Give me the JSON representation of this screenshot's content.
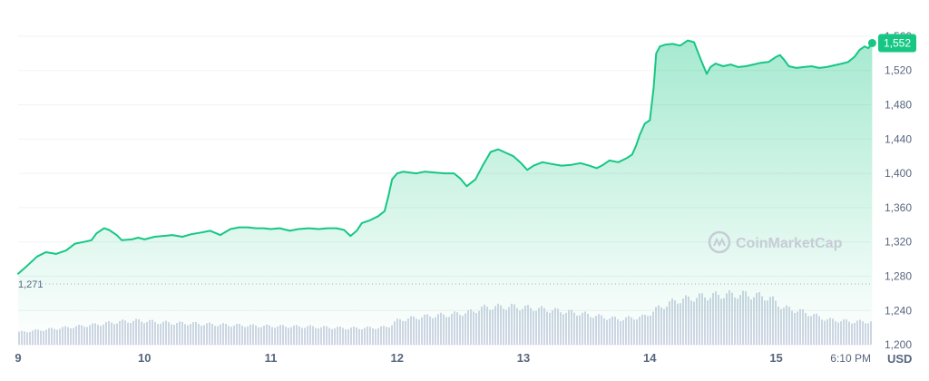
{
  "chart_data": {
    "type": "area",
    "title": "",
    "ylabel": "",
    "unit": "USD",
    "ylim": [
      1180,
      1580
    ],
    "y_ticks": [
      "1,200",
      "1,240",
      "1,280",
      "1,320",
      "1,360",
      "1,400",
      "1,440",
      "1,480",
      "1,520",
      "1,560"
    ],
    "x_ticks": [
      "9",
      "10",
      "11",
      "12",
      "13",
      "14",
      "15",
      "6:10 PM"
    ],
    "x_range_days": [
      9,
      15.75
    ],
    "baseline": {
      "value": 1271,
      "label": "1,271"
    },
    "current_value": {
      "value": 1552,
      "label": "1,552"
    },
    "series": [
      {
        "values": [
          [
            9.0,
            1283
          ],
          [
            9.07,
            1292
          ],
          [
            9.15,
            1303
          ],
          [
            9.22,
            1308
          ],
          [
            9.3,
            1306
          ],
          [
            9.38,
            1310
          ],
          [
            9.45,
            1318
          ],
          [
            9.52,
            1320
          ],
          [
            9.58,
            1322
          ],
          [
            9.62,
            1330
          ],
          [
            9.68,
            1336
          ],
          [
            9.72,
            1334
          ],
          [
            9.78,
            1328
          ],
          [
            9.82,
            1322
          ],
          [
            9.9,
            1323
          ],
          [
            9.95,
            1325
          ],
          [
            10.0,
            1323
          ],
          [
            10.08,
            1326
          ],
          [
            10.15,
            1327
          ],
          [
            10.22,
            1328
          ],
          [
            10.3,
            1326
          ],
          [
            10.37,
            1329
          ],
          [
            10.45,
            1331
          ],
          [
            10.52,
            1333
          ],
          [
            10.6,
            1328
          ],
          [
            10.68,
            1335
          ],
          [
            10.75,
            1337
          ],
          [
            10.82,
            1337
          ],
          [
            10.88,
            1336
          ],
          [
            10.94,
            1336
          ],
          [
            11.0,
            1335
          ],
          [
            11.07,
            1336
          ],
          [
            11.15,
            1333
          ],
          [
            11.22,
            1335
          ],
          [
            11.3,
            1336
          ],
          [
            11.38,
            1335
          ],
          [
            11.45,
            1336
          ],
          [
            11.52,
            1336
          ],
          [
            11.58,
            1334
          ],
          [
            11.63,
            1327
          ],
          [
            11.68,
            1333
          ],
          [
            11.72,
            1342
          ],
          [
            11.78,
            1345
          ],
          [
            11.85,
            1350
          ],
          [
            11.9,
            1356
          ],
          [
            11.93,
            1373
          ],
          [
            11.96,
            1393
          ],
          [
            12.0,
            1400
          ],
          [
            12.05,
            1402
          ],
          [
            12.1,
            1401
          ],
          [
            12.15,
            1400
          ],
          [
            12.22,
            1402
          ],
          [
            12.3,
            1401
          ],
          [
            12.38,
            1400
          ],
          [
            12.45,
            1400
          ],
          [
            12.5,
            1394
          ],
          [
            12.55,
            1385
          ],
          [
            12.62,
            1393
          ],
          [
            12.68,
            1410
          ],
          [
            12.74,
            1425
          ],
          [
            12.8,
            1428
          ],
          [
            12.86,
            1424
          ],
          [
            12.92,
            1420
          ],
          [
            12.98,
            1412
          ],
          [
            13.03,
            1404
          ],
          [
            13.08,
            1409
          ],
          [
            13.15,
            1413
          ],
          [
            13.22,
            1411
          ],
          [
            13.3,
            1409
          ],
          [
            13.38,
            1410
          ],
          [
            13.45,
            1412
          ],
          [
            13.52,
            1409
          ],
          [
            13.58,
            1406
          ],
          [
            13.63,
            1410
          ],
          [
            13.68,
            1415
          ],
          [
            13.75,
            1413
          ],
          [
            13.82,
            1418
          ],
          [
            13.86,
            1422
          ],
          [
            13.89,
            1432
          ],
          [
            13.92,
            1445
          ],
          [
            13.96,
            1458
          ],
          [
            14.0,
            1462
          ],
          [
            14.03,
            1500
          ],
          [
            14.05,
            1540
          ],
          [
            14.08,
            1548
          ],
          [
            14.12,
            1550
          ],
          [
            14.18,
            1551
          ],
          [
            14.24,
            1549
          ],
          [
            14.3,
            1555
          ],
          [
            14.35,
            1553
          ],
          [
            14.4,
            1534
          ],
          [
            14.45,
            1516
          ],
          [
            14.48,
            1524
          ],
          [
            14.52,
            1528
          ],
          [
            14.58,
            1525
          ],
          [
            14.64,
            1527
          ],
          [
            14.7,
            1524
          ],
          [
            14.76,
            1525
          ],
          [
            14.82,
            1527
          ],
          [
            14.88,
            1529
          ],
          [
            14.94,
            1530
          ],
          [
            15.0,
            1536
          ],
          [
            15.03,
            1538
          ],
          [
            15.06,
            1533
          ],
          [
            15.1,
            1525
          ],
          [
            15.16,
            1523
          ],
          [
            15.22,
            1524
          ],
          [
            15.28,
            1525
          ],
          [
            15.34,
            1523
          ],
          [
            15.4,
            1524
          ],
          [
            15.46,
            1526
          ],
          [
            15.52,
            1528
          ],
          [
            15.57,
            1530
          ],
          [
            15.62,
            1536
          ],
          [
            15.66,
            1544
          ],
          [
            15.7,
            1548
          ],
          [
            15.73,
            1546
          ],
          [
            15.76,
            1552
          ]
        ],
        "color": "#16c784"
      }
    ],
    "volume": {
      "type": "bar",
      "unit_scale": "relative",
      "values": [
        [
          9.0,
          0.25
        ],
        [
          9.2,
          0.3
        ],
        [
          9.4,
          0.35
        ],
        [
          9.6,
          0.4
        ],
        [
          9.8,
          0.46
        ],
        [
          9.95,
          0.48
        ],
        [
          10.15,
          0.44
        ],
        [
          10.4,
          0.42
        ],
        [
          10.7,
          0.39
        ],
        [
          11.0,
          0.37
        ],
        [
          11.3,
          0.36
        ],
        [
          11.6,
          0.33
        ],
        [
          11.85,
          0.34
        ],
        [
          11.92,
          0.36
        ],
        [
          12.0,
          0.49
        ],
        [
          12.2,
          0.56
        ],
        [
          12.4,
          0.6
        ],
        [
          12.55,
          0.64
        ],
        [
          12.7,
          0.75
        ],
        [
          12.9,
          0.76
        ],
        [
          13.1,
          0.72
        ],
        [
          13.4,
          0.64
        ],
        [
          13.6,
          0.56
        ],
        [
          13.75,
          0.51
        ],
        [
          13.95,
          0.56
        ],
        [
          14.05,
          0.72
        ],
        [
          14.2,
          0.88
        ],
        [
          14.4,
          0.96
        ],
        [
          14.6,
          1.0
        ],
        [
          14.75,
          1.0
        ],
        [
          14.9,
          0.96
        ],
        [
          14.95,
          0.92
        ],
        [
          15.05,
          0.74
        ],
        [
          15.2,
          0.66
        ],
        [
          15.4,
          0.5
        ],
        [
          15.6,
          0.46
        ],
        [
          15.76,
          0.46
        ]
      ],
      "color": "#cfd6e4"
    },
    "grid": true,
    "watermark": "CoinMarketCap",
    "colors": {
      "line": "#16c784",
      "volume": "#cfd6e4",
      "grid": "#eff2f5",
      "text": "#58667e"
    }
  }
}
